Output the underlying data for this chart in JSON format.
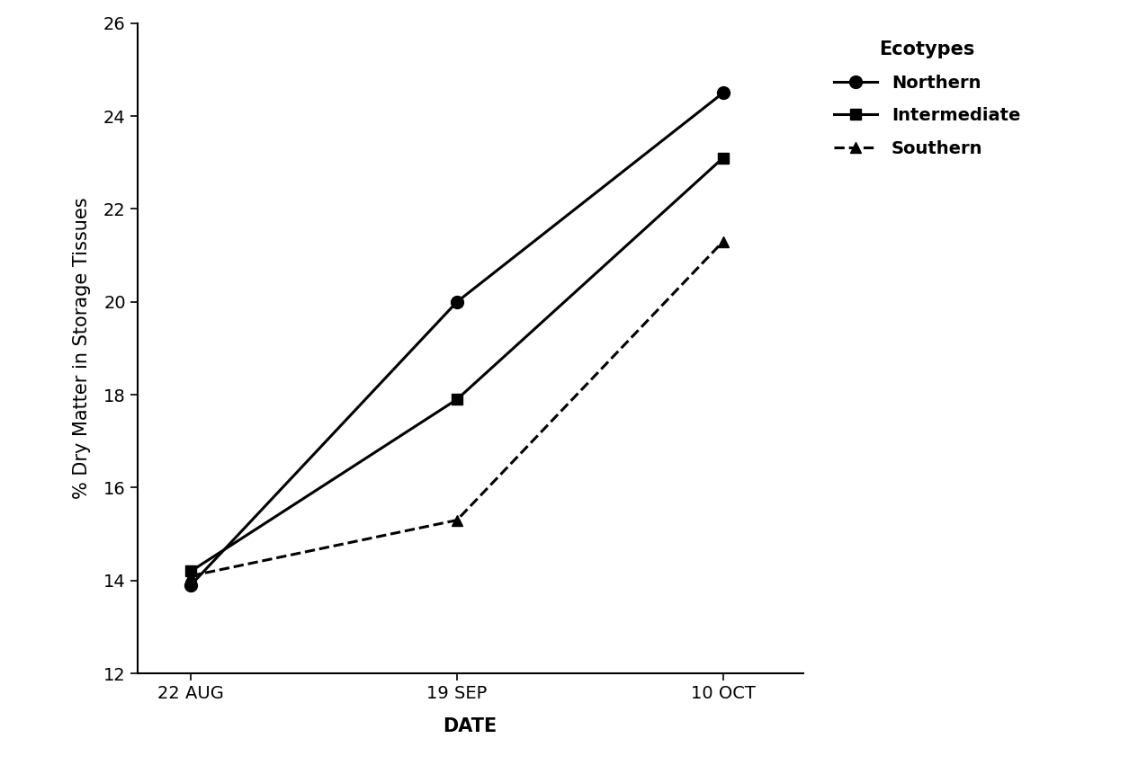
{
  "x_labels": [
    "22 AUG",
    "19 SEP",
    "10 OCT"
  ],
  "x_positions": [
    0,
    1,
    2
  ],
  "series": [
    {
      "name": "Northern",
      "y": [
        13.9,
        20.0,
        24.5
      ],
      "linestyle": "-",
      "marker": "o",
      "marker_size": 10,
      "linewidth": 2.2,
      "color": "#000000"
    },
    {
      "name": "Intermediate",
      "y": [
        14.2,
        17.9,
        23.1
      ],
      "linestyle": "-",
      "marker": "s",
      "marker_size": 9,
      "linewidth": 2.2,
      "color": "#000000"
    },
    {
      "name": "Southern",
      "y": [
        14.1,
        15.3,
        21.3
      ],
      "linestyle": "--",
      "marker": "^",
      "marker_size": 9,
      "linewidth": 2.2,
      "color": "#000000"
    }
  ],
  "xlabel": "DATE",
  "ylabel": "% Dry Matter in Storage Tissues",
  "legend_title": "Ecotypes",
  "ylim": [
    12,
    26
  ],
  "yticks": [
    12,
    14,
    16,
    18,
    20,
    22,
    24,
    26
  ],
  "xlim": [
    -0.2,
    2.3
  ],
  "label_fontsize": 15,
  "tick_fontsize": 14,
  "legend_fontsize": 14,
  "legend_title_fontsize": 15
}
